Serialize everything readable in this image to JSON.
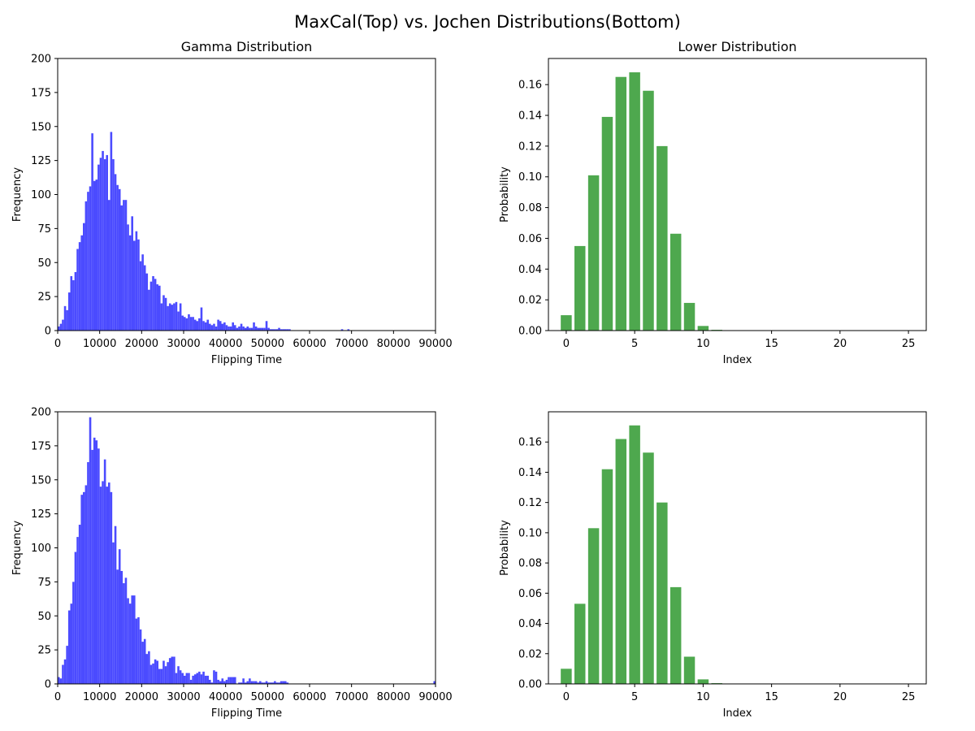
{
  "figure": {
    "suptitle": "MaxCal(Top) vs. Jochen Distributions(Bottom)"
  },
  "colors": {
    "histogram": "#4b4bff",
    "bars": "#4ea84e",
    "axes": "#000000",
    "background": "#ffffff"
  },
  "chart_data": [
    {
      "type": "bar",
      "subtype": "histogram",
      "position": "top-left",
      "title": "Gamma Distribution",
      "xlabel": "Flipping Time",
      "ylabel": "Frequency",
      "xlim": [
        0,
        90000
      ],
      "ylim": [
        0,
        200
      ],
      "xticks": [
        0,
        10000,
        20000,
        30000,
        40000,
        50000,
        60000,
        70000,
        80000,
        90000
      ],
      "yticks": [
        0,
        25,
        50,
        75,
        100,
        125,
        150,
        175,
        200
      ],
      "bin_start": 0,
      "bin_width": 500,
      "values": [
        3,
        5,
        8,
        18,
        15,
        28,
        40,
        37,
        43,
        60,
        65,
        70,
        79,
        95,
        102,
        106,
        145,
        110,
        111,
        122,
        127,
        132,
        126,
        129,
        96,
        146,
        126,
        115,
        107,
        104,
        92,
        96,
        96,
        78,
        70,
        84,
        66,
        73,
        67,
        51,
        56,
        48,
        42,
        30,
        36,
        40,
        38,
        34,
        33,
        20,
        26,
        24,
        18,
        20,
        19,
        20,
        21,
        14,
        20,
        11,
        10,
        9,
        12,
        10,
        10,
        8,
        7,
        9,
        17,
        7,
        6,
        8,
        5,
        4,
        5,
        3,
        8,
        7,
        5,
        6,
        4,
        3,
        3,
        6,
        4,
        2,
        3,
        5,
        3,
        2,
        3,
        2,
        2,
        6,
        3,
        2,
        2,
        2,
        2,
        7,
        2,
        1,
        1,
        1,
        1,
        2,
        1,
        1,
        1,
        1,
        1,
        0,
        0,
        0,
        0,
        0,
        0,
        0,
        0,
        0,
        0,
        0,
        0,
        0,
        0,
        0,
        0,
        0,
        0,
        0,
        0,
        0,
        0,
        0,
        0,
        1,
        0,
        0,
        1,
        0,
        0,
        0,
        0,
        0,
        0,
        0,
        0,
        0,
        0,
        0,
        0,
        0,
        0,
        0,
        0,
        0,
        0,
        0,
        0,
        0,
        0,
        0,
        0,
        0,
        0,
        0,
        0,
        0,
        0,
        0,
        0,
        0,
        0,
        0,
        0,
        0,
        0,
        0,
        0,
        0,
        0
      ]
    },
    {
      "type": "bar",
      "position": "top-right",
      "title": "Lower Distribution",
      "xlabel": "Index",
      "ylabel": "Probability",
      "xlim": [
        -1.3,
        26.3
      ],
      "ylim": [
        0,
        0.177
      ],
      "xticks": [
        0,
        5,
        10,
        15,
        20,
        25
      ],
      "yticks": [
        "0.00",
        "0.02",
        "0.04",
        "0.06",
        "0.08",
        "0.10",
        "0.12",
        "0.14",
        "0.16"
      ],
      "categories": [
        0,
        1,
        2,
        3,
        4,
        5,
        6,
        7,
        8,
        9,
        10,
        11,
        12,
        13,
        14,
        15,
        16,
        17,
        18,
        19,
        20,
        21,
        22,
        23,
        24,
        25
      ],
      "values": [
        0.01,
        0.055,
        0.101,
        0.139,
        0.165,
        0.168,
        0.156,
        0.12,
        0.063,
        0.018,
        0.003,
        0.0005,
        0,
        0,
        0,
        0,
        0,
        0,
        0,
        0,
        0,
        0,
        0,
        0,
        0,
        0
      ]
    },
    {
      "type": "bar",
      "subtype": "histogram",
      "position": "bottom-left",
      "title": "",
      "xlabel": "Flipping Time",
      "ylabel": "Frequency",
      "xlim": [
        0,
        90000
      ],
      "ylim": [
        0,
        200
      ],
      "xticks": [
        0,
        10000,
        20000,
        30000,
        40000,
        50000,
        60000,
        70000,
        80000,
        90000
      ],
      "yticks": [
        0,
        25,
        50,
        75,
        100,
        125,
        150,
        175,
        200
      ],
      "bin_start": 0,
      "bin_width": 500,
      "values": [
        5,
        4,
        14,
        18,
        28,
        54,
        59,
        75,
        97,
        108,
        117,
        139,
        141,
        146,
        163,
        196,
        172,
        181,
        179,
        173,
        145,
        149,
        165,
        145,
        148,
        141,
        104,
        116,
        84,
        99,
        83,
        74,
        78,
        63,
        59,
        65,
        65,
        48,
        49,
        40,
        31,
        33,
        22,
        24,
        14,
        15,
        18,
        17,
        11,
        11,
        17,
        13,
        16,
        19,
        20,
        20,
        8,
        13,
        10,
        8,
        6,
        8,
        8,
        3,
        6,
        7,
        8,
        9,
        7,
        9,
        6,
        6,
        3,
        1,
        10,
        9,
        3,
        2,
        4,
        2,
        3,
        5,
        5,
        5,
        5,
        0,
        1,
        1,
        4,
        1,
        2,
        4,
        2,
        2,
        2,
        1,
        2,
        1,
        1,
        2,
        1,
        1,
        1,
        2,
        1,
        1,
        2,
        2,
        2,
        1,
        0,
        0,
        0,
        0,
        0,
        0,
        0,
        0,
        0,
        0,
        0,
        0,
        0,
        0,
        0,
        0,
        0,
        0,
        0,
        0,
        0,
        0,
        0,
        0,
        0,
        0,
        0,
        0,
        0,
        0,
        0,
        0,
        0,
        0,
        0,
        0,
        0,
        0,
        0,
        0,
        0,
        0,
        0,
        0,
        0,
        0,
        0,
        0,
        0,
        0,
        0,
        0,
        0,
        0,
        0,
        0,
        0,
        0,
        0,
        0,
        0,
        0,
        0,
        0,
        0,
        0,
        0,
        0,
        0,
        2
      ]
    },
    {
      "type": "bar",
      "position": "bottom-right",
      "title": "",
      "xlabel": "Index",
      "ylabel": "Probability",
      "xlim": [
        -1.3,
        26.3
      ],
      "ylim": [
        0,
        0.18
      ],
      "xticks": [
        0,
        5,
        10,
        15,
        20,
        25
      ],
      "yticks": [
        "0.00",
        "0.02",
        "0.04",
        "0.06",
        "0.08",
        "0.10",
        "0.12",
        "0.14",
        "0.16"
      ],
      "categories": [
        0,
        1,
        2,
        3,
        4,
        5,
        6,
        7,
        8,
        9,
        10,
        11,
        12,
        13,
        14,
        15,
        16,
        17,
        18,
        19,
        20,
        21,
        22,
        23,
        24,
        25
      ],
      "values": [
        0.01,
        0.053,
        0.103,
        0.142,
        0.162,
        0.171,
        0.153,
        0.12,
        0.064,
        0.018,
        0.003,
        0.0005,
        0,
        0,
        0,
        0,
        0,
        0,
        0,
        0,
        0,
        0,
        0,
        0,
        0,
        0
      ]
    }
  ]
}
